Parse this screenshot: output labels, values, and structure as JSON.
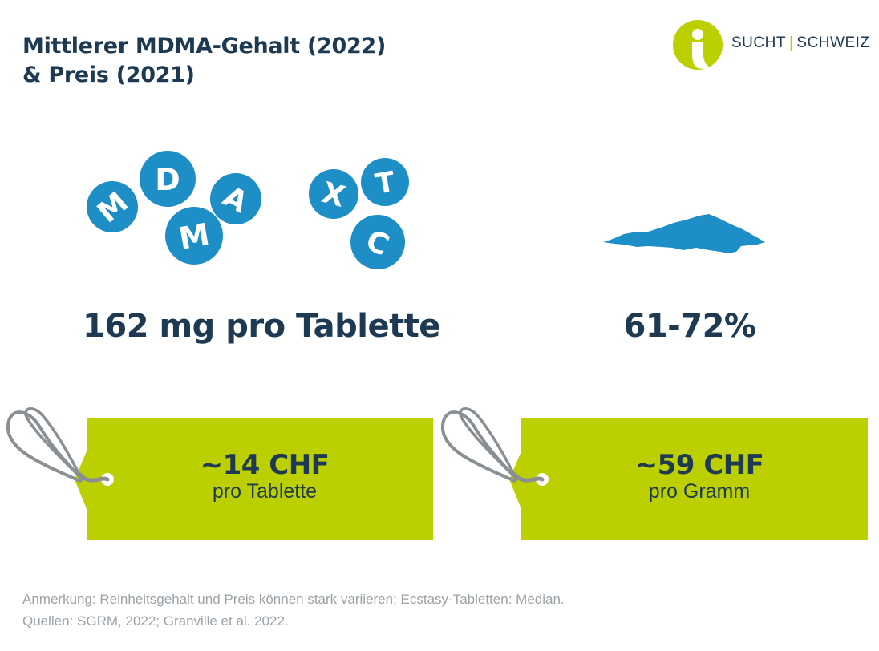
{
  "title": {
    "line1": "Mittlerer MDMA-Gehalt (2022)",
    "line2": "& Preis (2021)"
  },
  "logo": {
    "icon": "info-person-icon",
    "word1": "SUCHT",
    "separator": "|",
    "word2": "SCHWEIZ"
  },
  "colors": {
    "navy": "#1d3a52",
    "blue": "#1e8fc6",
    "lime": "#bccf00",
    "gray_text": "#9aa2a8",
    "string": "#8a8f93"
  },
  "pills": {
    "icon": "ecstasy-pills-icon",
    "letters": [
      "M",
      "D",
      "A",
      "M",
      "X",
      "T",
      "C"
    ]
  },
  "powder": {
    "icon": "powder-pile-icon"
  },
  "stats": {
    "tablet": "162 mg pro Tablette",
    "powder": "61-72%"
  },
  "price_tags": [
    {
      "icon": "price-tag-icon",
      "price": "~14 CHF",
      "unit": "pro Tablette"
    },
    {
      "icon": "price-tag-icon",
      "price": "~59 CHF",
      "unit": "pro Gramm"
    }
  ],
  "footnote": {
    "note": "Anmerkung: Reinheitsgehalt und Preis können stark variieren; Ecstasy-Tabletten: Median.",
    "sources": "Quellen: SGRM, 2022; Granville et al. 2022."
  }
}
